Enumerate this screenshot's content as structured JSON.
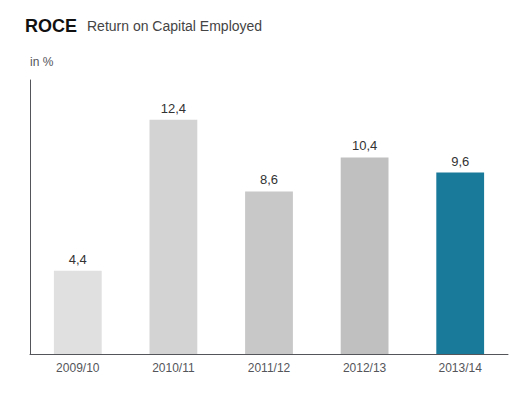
{
  "chart_data": {
    "type": "bar",
    "title": "ROCE",
    "subtitle": "Return on Capital Employed",
    "ylabel": "in %",
    "categories": [
      "2009/10",
      "2010/11",
      "2011/12",
      "2012/13",
      "2013/14"
    ],
    "values": [
      4.4,
      12.4,
      8.6,
      10.4,
      9.6
    ],
    "value_labels": [
      "4,4",
      "12,4",
      "8,6",
      "10,4",
      "9,6"
    ],
    "colors": [
      "#e0e0e0",
      "#d3d3d3",
      "#c8c8c8",
      "#c0c0c0",
      "#1a7a9a"
    ],
    "ylim": [
      0,
      14.5
    ],
    "grid": false,
    "data_labels": true,
    "tick_labels": "x"
  }
}
